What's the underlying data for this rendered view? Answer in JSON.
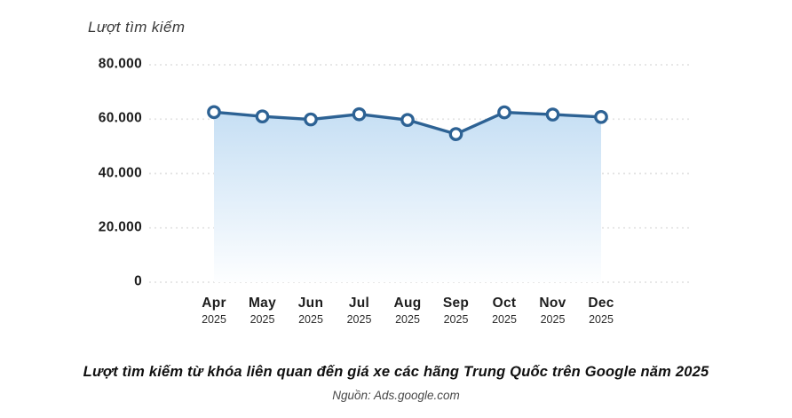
{
  "chart": {
    "title": "Lượt tìm kiếm"
  },
  "caption": "Lượt tìm kiếm từ khóa liên quan đến giá xe các hãng Trung Quốc trên Google năm 2025",
  "source": "Nguồn: Ads.google.com",
  "colors": {
    "line": "#2d6294",
    "marker_fill": "#ffffff",
    "area_top": "#c6dff4",
    "area_bottom": "#fdfeff",
    "grid": "#e4e4e4",
    "text": "#1d1d1d"
  },
  "chart_data": {
    "type": "area",
    "title": "Lượt tìm kiếm",
    "xlabel": "",
    "ylabel": "Lượt tìm kiếm",
    "categories": [
      {
        "month": "Apr",
        "year": "2025"
      },
      {
        "month": "May",
        "year": "2025"
      },
      {
        "month": "Jun",
        "year": "2025"
      },
      {
        "month": "Jul",
        "year": "2025"
      },
      {
        "month": "Aug",
        "year": "2025"
      },
      {
        "month": "Sep",
        "year": "2025"
      },
      {
        "month": "Oct",
        "year": "2025"
      },
      {
        "month": "Nov",
        "year": "2025"
      },
      {
        "month": "Dec",
        "year": "2025"
      }
    ],
    "values": [
      62600,
      61000,
      59900,
      61800,
      59700,
      54500,
      62500,
      61700,
      60800
    ],
    "ylim": [
      0,
      80000
    ],
    "yticks": [
      {
        "value": 0,
        "label": "0"
      },
      {
        "value": 20000,
        "label": "20.000"
      },
      {
        "value": 40000,
        "label": "40.000"
      },
      {
        "value": 60000,
        "label": "60.000"
      },
      {
        "value": 80000,
        "label": "80.000"
      }
    ],
    "grid": true,
    "grid_style": "dashed",
    "legend": false,
    "marker": "circle-open"
  }
}
